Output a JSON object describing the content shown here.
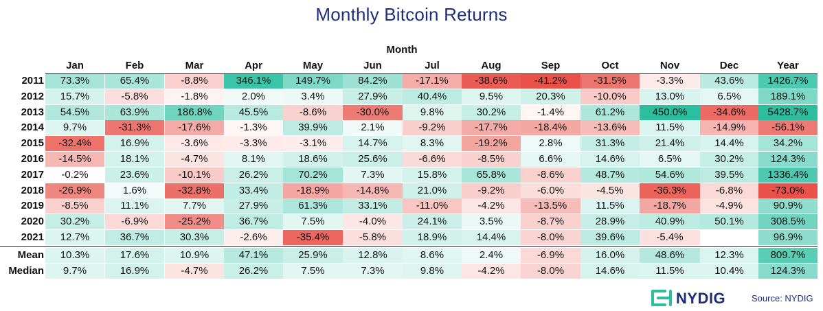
{
  "chart_data": {
    "type": "heatmap",
    "title": "Monthly Bitcoin Returns",
    "column_group_label": "Month",
    "columns": [
      "Jan",
      "Feb",
      "Mar",
      "Apr",
      "May",
      "Jun",
      "Jul",
      "Aug",
      "Sep",
      "Oct",
      "Nov",
      "Dec",
      "Year"
    ],
    "rows": [
      {
        "label": "2011",
        "cells": [
          "73.3%",
          "65.4%",
          "-8.8%",
          "346.1%",
          "149.7%",
          "84.2%",
          "-17.1%",
          "-38.6%",
          "-41.2%",
          "-31.5%",
          "-3.3%",
          "43.6%",
          "1426.7%"
        ]
      },
      {
        "label": "2012",
        "cells": [
          "15.7%",
          "-5.8%",
          "-1.8%",
          "2.0%",
          "3.4%",
          "27.9%",
          "40.4%",
          "9.5%",
          "20.3%",
          "-10.0%",
          "13.0%",
          "6.5%",
          "189.1%"
        ]
      },
      {
        "label": "2013",
        "cells": [
          "54.5%",
          "63.9%",
          "186.8%",
          "45.5%",
          "-8.6%",
          "-30.0%",
          "9.8%",
          "30.2%",
          "-1.4%",
          "61.2%",
          "450.0%",
          "-34.6%",
          "5428.7%"
        ]
      },
      {
        "label": "2014",
        "cells": [
          "9.7%",
          "-31.3%",
          "-17.6%",
          "-1.3%",
          "39.9%",
          "2.1%",
          "-9.2%",
          "-17.7%",
          "-18.4%",
          "-13.6%",
          "11.5%",
          "-14.9%",
          "-56.1%"
        ]
      },
      {
        "label": "2015",
        "cells": [
          "-32.4%",
          "16.9%",
          "-3.6%",
          "-3.3%",
          "-3.1%",
          "14.7%",
          "8.3%",
          "-19.2%",
          "2.8%",
          "31.3%",
          "21.4%",
          "14.4%",
          "34.2%"
        ]
      },
      {
        "label": "2016",
        "cells": [
          "-14.5%",
          "18.1%",
          "-4.7%",
          "8.1%",
          "18.6%",
          "25.6%",
          "-6.6%",
          "-8.5%",
          "6.6%",
          "14.6%",
          "6.5%",
          "30.2%",
          "124.3%"
        ]
      },
      {
        "label": "2017",
        "cells": [
          "-0.2%",
          "23.6%",
          "-10.1%",
          "26.2%",
          "70.2%",
          "7.3%",
          "15.8%",
          "65.8%",
          "-8.6%",
          "48.7%",
          "54.6%",
          "39.5%",
          "1336.4%"
        ]
      },
      {
        "label": "2018",
        "cells": [
          "-26.9%",
          "1.6%",
          "-32.8%",
          "33.4%",
          "-18.9%",
          "-14.8%",
          "21.0%",
          "-9.2%",
          "-6.0%",
          "-4.5%",
          "-36.3%",
          "-6.8%",
          "-73.0%"
        ]
      },
      {
        "label": "2019",
        "cells": [
          "-8.5%",
          "11.1%",
          "7.7%",
          "27.9%",
          "61.3%",
          "33.1%",
          "-11.0%",
          "-4.2%",
          "-13.5%",
          "11.5%",
          "-18.7%",
          "-4.9%",
          "90.9%"
        ]
      },
      {
        "label": "2020",
        "cells": [
          "30.2%",
          "-6.9%",
          "-25.2%",
          "36.7%",
          "7.5%",
          "-4.0%",
          "24.1%",
          "3.5%",
          "-8.7%",
          "28.9%",
          "40.9%",
          "50.1%",
          "308.5%"
        ]
      },
      {
        "label": "2021",
        "cells": [
          "12.7%",
          "36.7%",
          "30.3%",
          "-2.6%",
          "-35.4%",
          "-5.8%",
          "18.9%",
          "14.4%",
          "-8.0%",
          "39.6%",
          "-5.4%",
          "",
          "96.9%"
        ]
      },
      {
        "label": "Mean",
        "cells": [
          "10.3%",
          "17.6%",
          "10.9%",
          "47.1%",
          "25.9%",
          "12.8%",
          "8.6%",
          "2.4%",
          "-6.9%",
          "16.0%",
          "48.6%",
          "12.3%",
          "809.7%"
        ]
      },
      {
        "label": "Median",
        "cells": [
          "9.7%",
          "16.9%",
          "-4.7%",
          "26.2%",
          "7.5%",
          "7.3%",
          "9.8%",
          "-4.2%",
          "-8.0%",
          "14.6%",
          "11.5%",
          "10.4%",
          "124.3%"
        ]
      }
    ],
    "colors": {
      "strong_positive": "#2bbfa0",
      "strong_negative": "#e8524a",
      "neutral": "#ffffff",
      "title": "#1f2d7a",
      "brand": "#2bbfa0"
    }
  },
  "footer": {
    "logo_text": "NYDIG",
    "source": "Source: NYDIG"
  },
  "icons": {
    "logo": "nydig-logo-icon"
  }
}
